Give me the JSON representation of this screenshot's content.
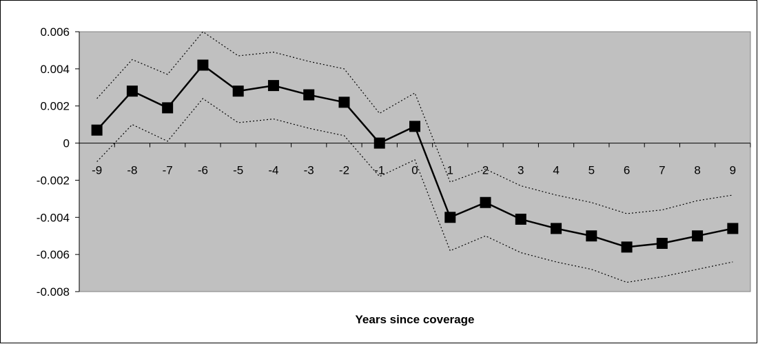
{
  "chart_data": {
    "type": "line",
    "title": "",
    "xlabel": "Years since coverage",
    "ylabel": "",
    "x": [
      -9,
      -8,
      -7,
      -6,
      -5,
      -4,
      -3,
      -2,
      -1,
      0,
      1,
      2,
      3,
      4,
      5,
      6,
      7,
      8,
      9
    ],
    "x_tick_labels": [
      "-9",
      "-8",
      "-7",
      "-6",
      "-5",
      "-4",
      "-3",
      "-2",
      "-1",
      "0",
      "1",
      "2",
      "3",
      "4",
      "5",
      "6",
      "7",
      "8",
      "9"
    ],
    "y_tick_labels": [
      "0.006",
      "0.004",
      "0.002",
      "0",
      "-0.002",
      "-0.004",
      "-0.006",
      "-0.008"
    ],
    "y_ticks": [
      0.006,
      0.004,
      0.002,
      0,
      -0.002,
      -0.004,
      -0.006,
      -0.008
    ],
    "ylim": [
      -0.008,
      0.006
    ],
    "grid": false,
    "plot_background": "#c0c0c0",
    "series": [
      {
        "role": "estimate",
        "style": "solid-with-square-markers",
        "color": "#000000",
        "values": [
          0.0007,
          0.0028,
          0.0019,
          0.0042,
          0.0028,
          0.0031,
          0.0026,
          0.0022,
          0.0,
          0.0009,
          -0.004,
          -0.0032,
          -0.0041,
          -0.0046,
          -0.005,
          -0.0056,
          -0.0054,
          -0.005,
          -0.0046
        ]
      },
      {
        "role": "upper-bound",
        "style": "dotted",
        "color": "#000000",
        "values": [
          0.0024,
          0.0045,
          0.0037,
          0.006,
          0.0047,
          0.0049,
          0.0044,
          0.004,
          0.0016,
          0.0027,
          -0.0021,
          -0.0014,
          -0.0023,
          -0.0028,
          -0.0032,
          -0.0038,
          -0.0036,
          -0.0031,
          -0.0028
        ]
      },
      {
        "role": "lower-bound",
        "style": "dotted",
        "color": "#000000",
        "values": [
          -0.001,
          0.001,
          0.0001,
          0.0024,
          0.0011,
          0.0013,
          0.0008,
          0.0004,
          -0.0018,
          -0.0009,
          -0.0058,
          -0.005,
          -0.0059,
          -0.0064,
          -0.0068,
          -0.0075,
          -0.0072,
          -0.0068,
          -0.0064
        ]
      }
    ]
  }
}
